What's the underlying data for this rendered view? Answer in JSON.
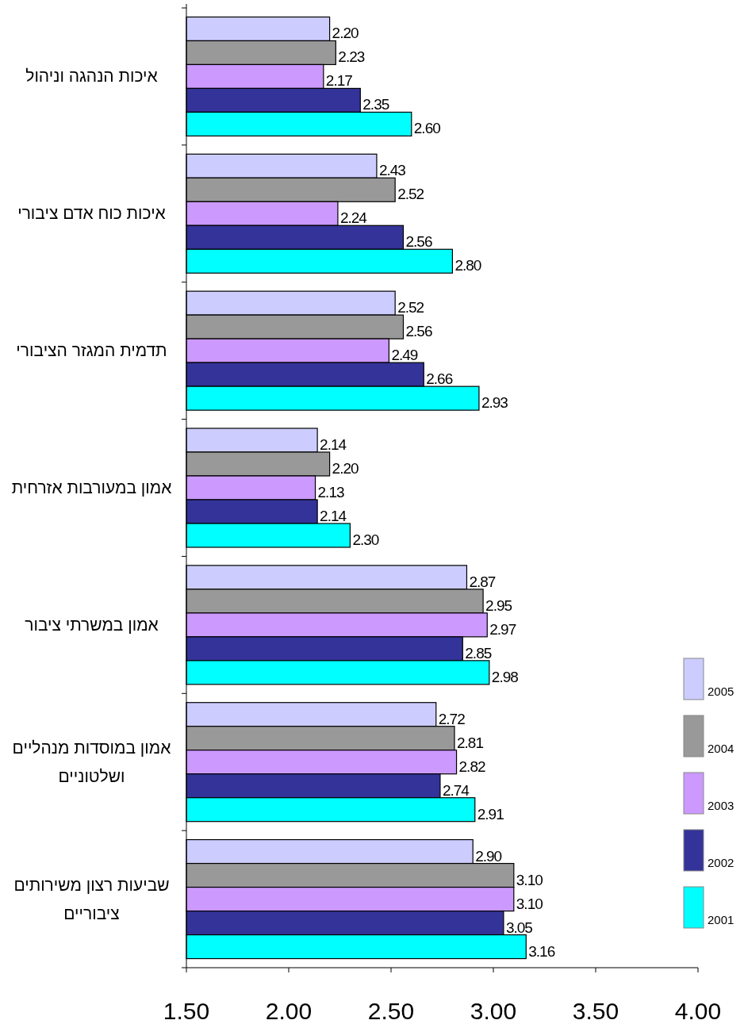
{
  "chart_data": {
    "type": "bar",
    "orientation": "horizontal",
    "categories": [
      "איכות הנהגה וניהול",
      "איכות כוח אדם ציבורי",
      "תדמית המגזר הציבורי",
      "אמון במעורבות אזרחית",
      "אמון במשרתי ציבור",
      "אמון במוסדות  מנהליים ושלטוניים",
      "שביעות רצון משירותים ציבוריים"
    ],
    "series": [
      {
        "name": "2005",
        "color": "#ccccff",
        "values": [
          2.2,
          2.43,
          2.52,
          2.14,
          2.87,
          2.72,
          2.9
        ],
        "value_labels": [
          "2.20",
          "2.43",
          "2.52",
          "2.14",
          "2.87",
          "2.72",
          "2.90"
        ]
      },
      {
        "name": "2004",
        "color": "#999999",
        "values": [
          2.23,
          2.52,
          2.56,
          2.2,
          2.95,
          2.81,
          3.1
        ],
        "value_labels": [
          "2.23",
          "2.52",
          "2.56",
          "2.20",
          "2.95",
          "2.81",
          "3.10"
        ]
      },
      {
        "name": "2003",
        "color": "#cc99ff",
        "values": [
          2.17,
          2.24,
          2.49,
          2.13,
          2.97,
          2.82,
          3.1
        ],
        "value_labels": [
          "2.17",
          "2.24",
          "2.49",
          "2.13",
          "2.97",
          "2.82",
          "3.10"
        ]
      },
      {
        "name": "2002",
        "color": "#333399",
        "values": [
          2.35,
          2.56,
          2.66,
          2.14,
          2.85,
          2.74,
          3.05
        ],
        "value_labels": [
          "2.35",
          "2.56",
          "2.66",
          "2.14",
          "2.85",
          "2.74",
          "3.05"
        ]
      },
      {
        "name": "2001",
        "color": "#00ffff",
        "values": [
          2.6,
          2.8,
          2.93,
          2.3,
          2.98,
          2.91,
          3.16
        ],
        "value_labels": [
          "2.60",
          "2.80",
          "2.93",
          "2.30",
          "2.98",
          "2.91",
          "3.16"
        ]
      }
    ],
    "xlim": [
      1.5,
      4.0
    ],
    "xticks": [
      {
        "value": 1.5,
        "label": "1.50"
      },
      {
        "value": 2.0,
        "label": "2.00"
      },
      {
        "value": 2.5,
        "label": "2.50"
      },
      {
        "value": 3.0,
        "label": "3.00"
      },
      {
        "value": 3.5,
        "label": "3.50"
      },
      {
        "value": 4.0,
        "label": "4.00"
      }
    ],
    "grid": false,
    "legend": "right"
  }
}
